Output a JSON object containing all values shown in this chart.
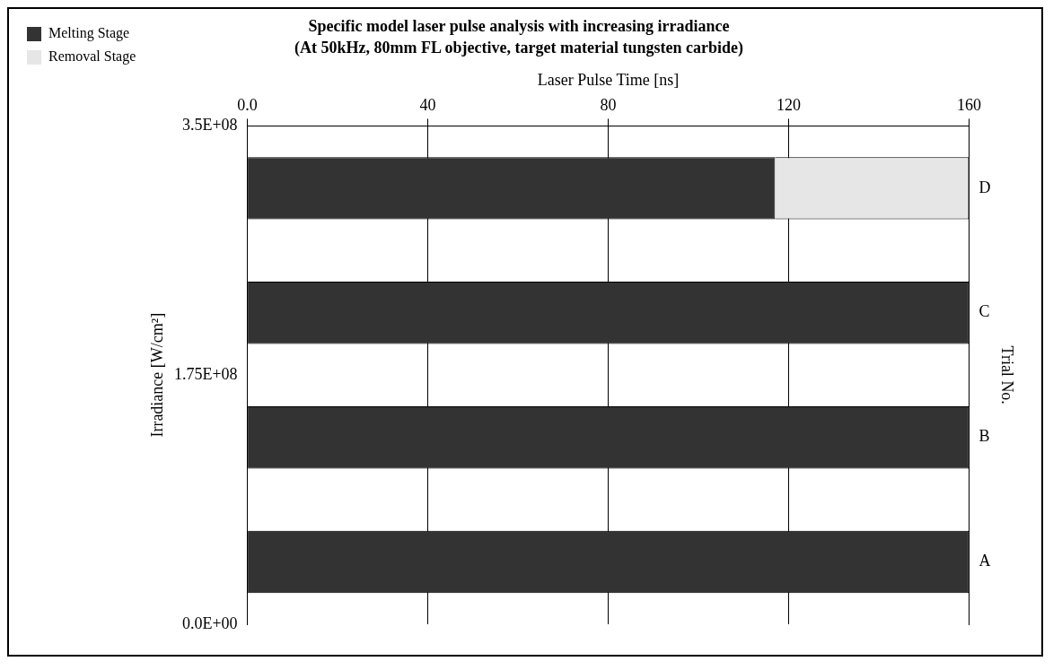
{
  "chart_data": {
    "type": "bar",
    "orientation": "horizontal",
    "stacked": true,
    "title": "Specific model laser pulse analysis with increasing irradiance",
    "subtitle": "(At 50kHz, 80mm FL objective, target material tungsten carbide)",
    "xlabel": "Laser Pulse Time [ns]",
    "ylabel": "Trial No.",
    "y2label": "Irradiance [W/cm²]",
    "categories": [
      "D",
      "C",
      "B",
      "A"
    ],
    "series": [
      {
        "name": "Melting Stage",
        "color": "#333333",
        "values": [
          117,
          160,
          160,
          160
        ]
      },
      {
        "name": "Removal Stage",
        "color": "#e6e6e6",
        "values": [
          43,
          0,
          0,
          0
        ]
      }
    ],
    "xlim": [
      0,
      160
    ],
    "xticks": [
      {
        "value": 0,
        "label": "0.0"
      },
      40,
      80,
      120,
      160
    ],
    "y2lim": [
      0,
      350000000
    ],
    "y2ticks": [
      {
        "value": 0,
        "label": "0.0E+00"
      },
      {
        "value": 175000000,
        "label": "1.75E+08"
      },
      {
        "value": 350000000,
        "label": "3.5E+08"
      }
    ],
    "grid": "x",
    "legend": "top left"
  }
}
